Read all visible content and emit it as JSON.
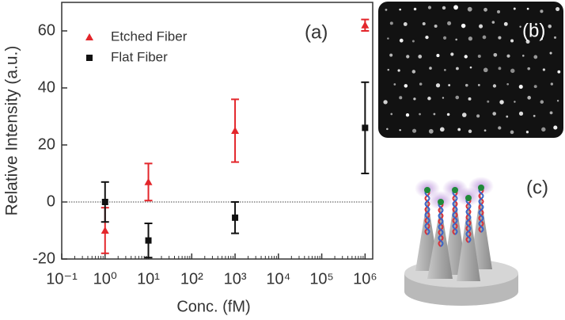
{
  "chart_data": {
    "type": "scatter",
    "xlabel": "Conc. (fM)",
    "ylabel": "Relative Intensity (a.u.)",
    "annotation": "(a)",
    "x": [
      1,
      10,
      1000,
      1000000
    ],
    "series": [
      {
        "name": "Etched Fiber",
        "color": "#e3262b",
        "marker": "triangle",
        "values": [
          -10,
          7,
          25,
          62
        ],
        "errors": [
          8,
          6.5,
          11,
          2
        ]
      },
      {
        "name": "Flat Fiber",
        "color": "#111111",
        "marker": "square",
        "values": [
          0,
          -13.5,
          -5.5,
          26
        ],
        "errors": [
          7,
          6,
          5.5,
          16
        ]
      }
    ],
    "xscale": "log",
    "xlim": [
      0.1,
      1500000
    ],
    "xticks": [
      {
        "value": 0.1,
        "label": "10⁻¹"
      },
      {
        "value": 1,
        "label": "10⁰"
      },
      {
        "value": 10,
        "label": "10¹"
      },
      {
        "value": 100,
        "label": "10²"
      },
      {
        "value": 1000,
        "label": "10³"
      },
      {
        "value": 10000,
        "label": "10⁴"
      },
      {
        "value": 100000,
        "label": "10⁵"
      },
      {
        "value": 1000000,
        "label": "10⁶"
      }
    ],
    "ylim": [
      -20,
      70
    ],
    "yticks": [
      -20,
      0,
      20,
      40,
      60
    ],
    "reference_line": 0,
    "legend": "upper left"
  },
  "image_panel": {
    "label": "(b)"
  },
  "diagram_panel": {
    "label": "(c)"
  }
}
